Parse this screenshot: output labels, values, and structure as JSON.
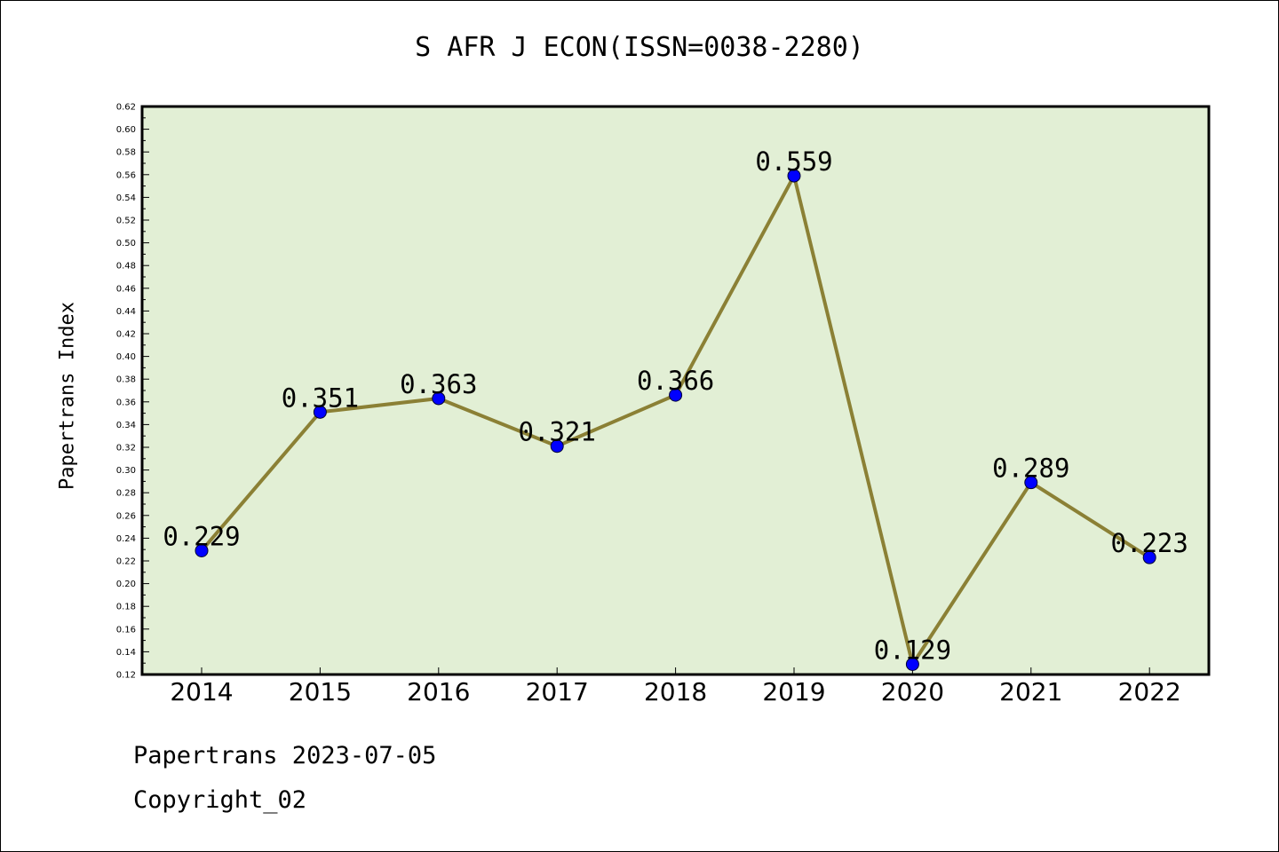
{
  "chart_data": {
    "type": "line",
    "title": "S AFR J ECON(ISSN=0038-2280)",
    "xlabel": "",
    "ylabel": "Papertrans Index",
    "categories": [
      "2014",
      "2015",
      "2016",
      "2017",
      "2018",
      "2019",
      "2020",
      "2021",
      "2022"
    ],
    "values": [
      0.229,
      0.351,
      0.363,
      0.321,
      0.366,
      0.559,
      0.129,
      0.289,
      0.223
    ],
    "data_labels": [
      "0.229",
      "0.351",
      "0.363",
      "0.321",
      "0.366",
      "0.559",
      "0.129",
      "0.289",
      "0.223"
    ],
    "ylim": [
      0.12,
      0.62
    ],
    "yticks": [
      "0.12",
      "0.14",
      "0.16",
      "0.18",
      "0.20",
      "0.22",
      "0.24",
      "0.26",
      "0.28",
      "0.30",
      "0.32",
      "0.34",
      "0.36",
      "0.38",
      "0.40",
      "0.42",
      "0.44",
      "0.46",
      "0.48",
      "0.50",
      "0.52",
      "0.54",
      "0.56",
      "0.58",
      "0.60",
      "0.62"
    ],
    "grid": false,
    "colors": {
      "plot_background": "#e2efd5",
      "line": "#8b8035",
      "marker": "#0000ff"
    }
  },
  "footer": {
    "date_text": "Papertrans 2023-07-05",
    "copyright_text": "Copyright_02"
  }
}
